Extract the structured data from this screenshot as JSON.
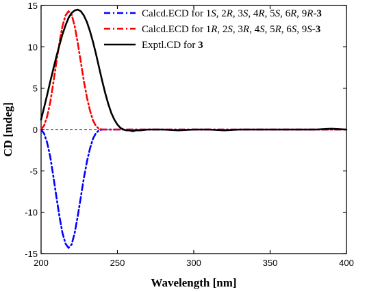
{
  "chart_data": {
    "type": "line",
    "title": "",
    "xlabel": "Wavelength [nm]",
    "ylabel": "CD [mdeg]",
    "xlim": [
      200,
      400
    ],
    "ylim": [
      -15,
      15
    ],
    "x_ticks": [
      200,
      250,
      300,
      350,
      400
    ],
    "y_ticks": [
      15,
      10,
      5,
      0,
      -5,
      -10,
      -15
    ],
    "grid": false,
    "legend_position": "top-right",
    "zero_reference_line": true,
    "series": [
      {
        "name": "Calcd.ECD for 1S, 2R, 3S, 4R, 5S, 6R, 9R-3",
        "name_parts": [
          {
            "t": "Calcd.ECD for 1"
          },
          {
            "t": "S",
            "i": true
          },
          {
            "t": ", 2"
          },
          {
            "t": "R",
            "i": true
          },
          {
            "t": ", 3"
          },
          {
            "t": "S",
            "i": true
          },
          {
            "t": ", 4"
          },
          {
            "t": "R",
            "i": true
          },
          {
            "t": ", 5"
          },
          {
            "t": "S",
            "i": true
          },
          {
            "t": ", 6"
          },
          {
            "t": "R",
            "i": true
          },
          {
            "t": ", 9"
          },
          {
            "t": "R",
            "i": true
          },
          {
            "t": "-3",
            "b": true
          }
        ],
        "color": "#0000ff",
        "line_style": "dash-dot",
        "x": [
          200,
          202,
          204,
          206,
          208,
          210,
          212,
          214,
          216,
          218,
          220,
          222,
          224,
          226,
          228,
          230,
          232,
          234,
          236,
          238,
          240,
          245,
          250,
          260,
          270,
          280,
          290,
          300,
          310,
          320,
          330,
          340,
          350,
          360,
          370,
          380,
          390,
          400
        ],
        "y": [
          0,
          -0.5,
          -1.6,
          -3.3,
          -5.6,
          -8.1,
          -10.5,
          -12.5,
          -13.8,
          -14.3,
          -13.9,
          -12.5,
          -10.5,
          -8.2,
          -5.9,
          -3.9,
          -2.3,
          -1.1,
          -0.4,
          -0.1,
          0,
          0,
          0,
          0,
          0,
          0,
          0,
          0,
          0,
          0,
          0,
          0,
          0,
          0,
          0,
          0,
          0,
          0
        ]
      },
      {
        "name": "Calcd.ECD for 1R, 2S, 3R, 4S, 5R, 6S, 9S-3",
        "name_parts": [
          {
            "t": "Calcd.ECD for 1"
          },
          {
            "t": "R",
            "i": true
          },
          {
            "t": ", 2"
          },
          {
            "t": "S",
            "i": true
          },
          {
            "t": ", 3"
          },
          {
            "t": "R",
            "i": true
          },
          {
            "t": ", 4"
          },
          {
            "t": "S",
            "i": true
          },
          {
            "t": ", 5"
          },
          {
            "t": "R",
            "i": true
          },
          {
            "t": ", 6"
          },
          {
            "t": "S",
            "i": true
          },
          {
            "t": ", 9"
          },
          {
            "t": "S",
            "i": true
          },
          {
            "t": "-3",
            "b": true
          }
        ],
        "color": "#ff0000",
        "line_style": "dash-dot",
        "x": [
          200,
          202,
          204,
          206,
          208,
          210,
          212,
          214,
          216,
          218,
          220,
          222,
          224,
          226,
          228,
          230,
          232,
          234,
          236,
          238,
          240,
          245,
          250,
          260,
          270,
          280,
          290,
          300,
          310,
          320,
          330,
          340,
          350,
          360,
          370,
          380,
          390,
          400
        ],
        "y": [
          0,
          0.5,
          1.6,
          3.3,
          5.6,
          8.1,
          10.5,
          12.5,
          13.8,
          14.3,
          13.9,
          12.5,
          10.5,
          8.2,
          5.9,
          3.9,
          2.3,
          1.1,
          0.4,
          0.1,
          0,
          0,
          0,
          0,
          0,
          0,
          0,
          0,
          0,
          0,
          0,
          0,
          0,
          0,
          0,
          0,
          0,
          0
        ]
      },
      {
        "name": "Exptl.CD for 3",
        "name_parts": [
          {
            "t": "Exptl.CD for "
          },
          {
            "t": "3",
            "b": true
          }
        ],
        "color": "#000000",
        "line_style": "solid",
        "x": [
          200,
          202,
          204,
          206,
          208,
          210,
          212,
          214,
          216,
          218,
          220,
          222,
          224,
          226,
          228,
          230,
          232,
          234,
          236,
          238,
          240,
          242,
          244,
          246,
          248,
          250,
          252,
          254,
          256,
          258,
          260,
          262,
          265,
          270,
          280,
          290,
          300,
          310,
          320,
          330,
          340,
          350,
          360,
          370,
          380,
          390,
          400
        ],
        "y": [
          1.2,
          2.7,
          4.2,
          5.8,
          7.3,
          8.8,
          10.2,
          11.5,
          12.6,
          13.5,
          14.1,
          14.4,
          14.5,
          14.3,
          13.8,
          13.0,
          11.9,
          10.6,
          9.1,
          7.5,
          5.9,
          4.4,
          3.1,
          2.0,
          1.2,
          0.6,
          0.2,
          0.0,
          -0.1,
          -0.1,
          -0.2,
          -0.1,
          -0.1,
          0,
          0,
          -0.1,
          0,
          0,
          -0.1,
          0,
          0,
          0,
          0,
          0,
          0,
          0.1,
          0
        ]
      }
    ]
  }
}
